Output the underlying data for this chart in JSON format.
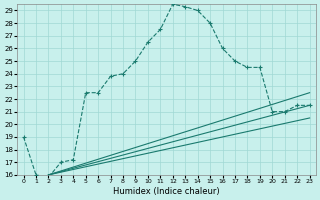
{
  "xlabel": "Humidex (Indice chaleur)",
  "bg_color": "#c8f0ec",
  "grid_color": "#a0d8d4",
  "line_color": "#1a7a6e",
  "xlim": [
    -0.5,
    23.5
  ],
  "ylim": [
    16,
    29.5
  ],
  "yticks": [
    16,
    17,
    18,
    19,
    20,
    21,
    22,
    23,
    24,
    25,
    26,
    27,
    28,
    29
  ],
  "xticks": [
    0,
    1,
    2,
    3,
    4,
    5,
    6,
    7,
    8,
    9,
    10,
    11,
    12,
    13,
    14,
    15,
    16,
    17,
    18,
    19,
    20,
    21,
    22,
    23
  ],
  "line1_x": [
    0,
    1,
    2,
    3,
    4,
    5,
    6,
    7,
    8,
    9,
    10,
    11,
    12,
    13,
    14,
    15,
    16,
    17,
    18,
    19,
    20,
    21,
    22,
    23
  ],
  "line1_y": [
    19,
    16,
    15.8,
    17,
    17.2,
    22.5,
    22.5,
    23.8,
    24,
    25,
    26.5,
    27.5,
    29.5,
    29.3,
    29,
    28,
    26,
    25,
    24.5,
    24.5,
    21,
    21,
    21.5,
    21.5
  ],
  "line2_x": [
    2,
    23
  ],
  "line2_y": [
    16,
    21.5
  ],
  "line3_x": [
    2,
    23
  ],
  "line3_y": [
    16,
    20.5
  ],
  "line4_x": [
    2,
    23
  ],
  "line4_y": [
    16,
    22.5
  ]
}
